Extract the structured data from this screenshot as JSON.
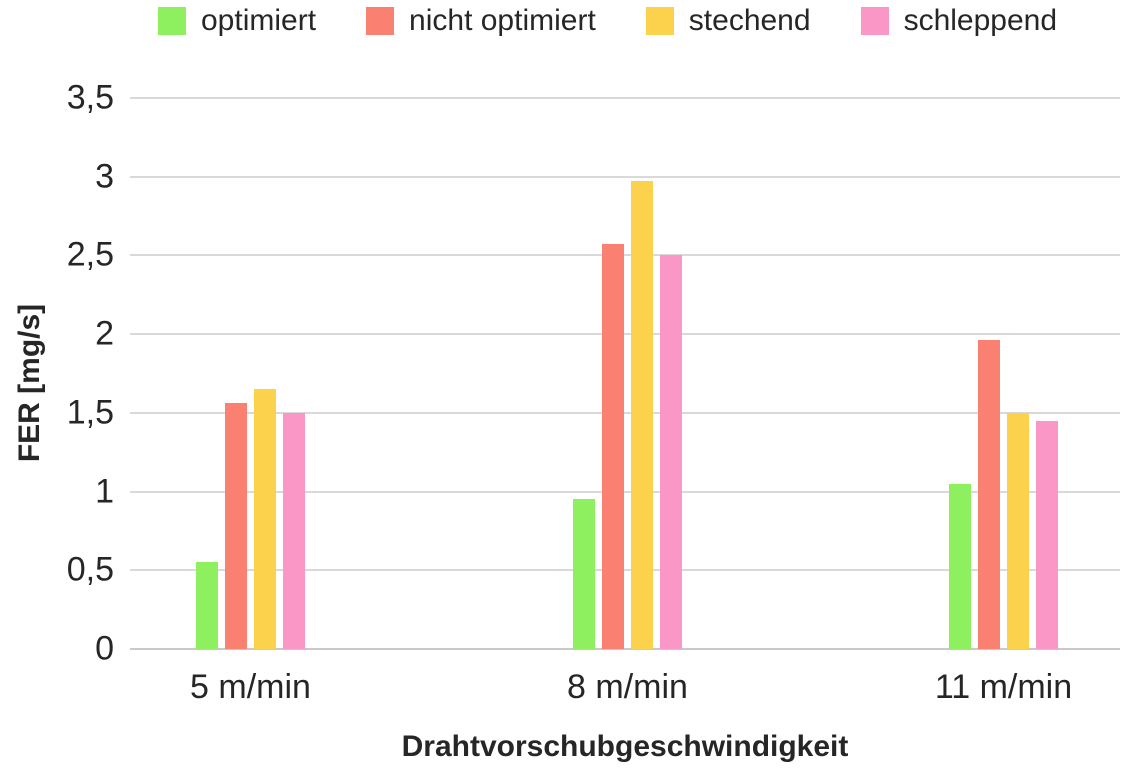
{
  "chart_data": {
    "type": "bar",
    "title": "",
    "xlabel": "Drahtvorschubgeschwindigkeit",
    "ylabel": "FER [mg/s]",
    "categories": [
      "5 m/min",
      "8 m/min",
      "11 m/min"
    ],
    "series": [
      {
        "name": "optimiert",
        "color": "#8ef05e",
        "values": [
          0.55,
          0.95,
          1.05
        ]
      },
      {
        "name": "nicht optimiert",
        "color": "#fa8072",
        "values": [
          1.56,
          2.57,
          1.96
        ]
      },
      {
        "name": "stechend",
        "color": "#fcd24c",
        "values": [
          1.65,
          2.97,
          1.5
        ]
      },
      {
        "name": "schleppend",
        "color": "#fa97c7",
        "values": [
          1.5,
          2.5,
          1.45
        ]
      }
    ],
    "ylim": [
      0,
      3.5
    ],
    "y_ticks": [
      {
        "value": 3.5,
        "label": "3,5"
      },
      {
        "value": 3.0,
        "label": "3"
      },
      {
        "value": 2.5,
        "label": "2,5"
      },
      {
        "value": 2.0,
        "label": "2"
      },
      {
        "value": 1.5,
        "label": "1,5"
      },
      {
        "value": 1.0,
        "label": "1"
      },
      {
        "value": 0.5,
        "label": "0,5"
      },
      {
        "value": 0.0,
        "label": "0"
      }
    ],
    "grid": true,
    "legend_position": "top",
    "colors": {
      "text": "#262626",
      "gridline": "#d9d9d9",
      "background": "#ffffff"
    }
  }
}
